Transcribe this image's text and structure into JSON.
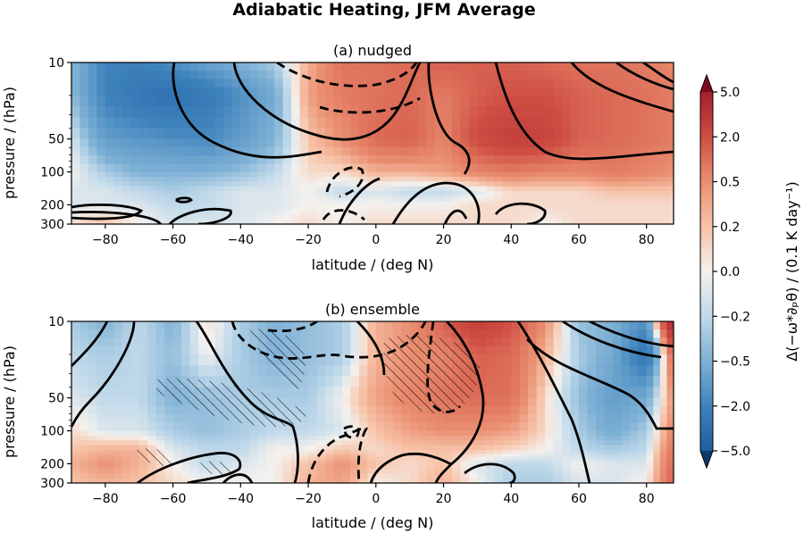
{
  "chart_data": {
    "type": "heatmap",
    "title": "Adiabatic Heating, JFM Average",
    "panels": [
      {
        "id": "a",
        "subtitle": "(a) nudged",
        "xlabel": "latitude / (deg N)",
        "ylabel": "pressure / (hPa)",
        "xlim": [
          -90,
          88
        ],
        "ylim": [
          300,
          10
        ],
        "yscale": "log",
        "x_ticks": [
          -80,
          -60,
          -40,
          -20,
          0,
          20,
          40,
          60,
          80
        ],
        "x_tick_labels": [
          "−80",
          "−60",
          "−40",
          "−20",
          "0",
          "20",
          "40",
          "60",
          "80"
        ],
        "y_ticks": [
          10,
          50,
          100,
          200,
          300
        ],
        "y_tick_labels": [
          "10",
          "50",
          "100",
          "200",
          "300"
        ],
        "field": {
          "lat": [
            -90,
            -80,
            -70,
            -60,
            -50,
            -40,
            -30,
            -20,
            -10,
            0,
            10,
            20,
            30,
            40,
            50,
            60,
            70,
            80,
            88
          ],
          "pressure": [
            10,
            20,
            50,
            100,
            150,
            200,
            300
          ],
          "values": [
            [
              -0.4,
              -1.2,
              -1.3,
              -1.0,
              -0.7,
              -0.5,
              -0.3,
              0.3,
              0.8,
              0.8,
              0.9,
              1.0,
              1.0,
              1.0,
              0.9,
              0.8,
              0.8,
              0.7,
              0.6
            ],
            [
              -0.4,
              -1.2,
              -1.6,
              -1.8,
              -1.5,
              -1.0,
              -0.6,
              0.4,
              0.7,
              0.8,
              0.9,
              0.7,
              1.0,
              1.2,
              1.2,
              1.0,
              0.9,
              0.8,
              0.7
            ],
            [
              -0.1,
              -0.8,
              -0.9,
              -1.0,
              -1.1,
              -0.8,
              -0.5,
              0.2,
              0.5,
              0.9,
              1.0,
              0.6,
              1.3,
              1.6,
              1.5,
              1.0,
              0.9,
              0.8,
              0.7
            ],
            [
              0.0,
              -0.3,
              -0.5,
              -0.5,
              -0.5,
              -0.4,
              -0.2,
              0.1,
              0.1,
              0.3,
              0.3,
              0.4,
              0.6,
              0.7,
              0.6,
              0.6,
              0.7,
              0.6,
              0.5
            ],
            [
              -0.1,
              -0.1,
              -0.2,
              -0.3,
              -0.2,
              -0.1,
              -0.1,
              0.0,
              -0.2,
              -0.1,
              -0.2,
              -0.2,
              -0.1,
              0.1,
              0.1,
              0.1,
              0.2,
              0.2,
              0.2
            ],
            [
              -0.1,
              -0.1,
              -0.1,
              -0.2,
              -0.2,
              -0.1,
              -0.1,
              0.0,
              0.0,
              0.0,
              0.0,
              0.0,
              0.1,
              0.1,
              0.1,
              0.1,
              0.1,
              0.1,
              0.1
            ],
            [
              0.1,
              0.2,
              0.0,
              -0.1,
              -0.1,
              -0.1,
              0.0,
              0.1,
              0.0,
              0.1,
              0.1,
              0.1,
              0.1,
              0.1,
              0.0,
              0.1,
              0.1,
              0.1,
              0.1
            ]
          ]
        }
      },
      {
        "id": "b",
        "subtitle": "(b) ensemble",
        "xlabel": "latitude / (deg N)",
        "ylabel": "pressure / (hPa)",
        "xlim": [
          -90,
          88
        ],
        "ylim": [
          300,
          10
        ],
        "yscale": "log",
        "x_ticks": [
          -80,
          -60,
          -40,
          -20,
          0,
          20,
          40,
          60,
          80
        ],
        "x_tick_labels": [
          "−80",
          "−60",
          "−40",
          "−20",
          "0",
          "20",
          "40",
          "60",
          "80"
        ],
        "y_ticks": [
          10,
          50,
          100,
          200,
          300
        ],
        "y_tick_labels": [
          "10",
          "50",
          "100",
          "200",
          "300"
        ],
        "field": {
          "lat": [
            -90,
            -80,
            -70,
            -60,
            -50,
            -40,
            -30,
            -20,
            -10,
            0,
            10,
            20,
            30,
            40,
            50,
            60,
            70,
            80,
            88
          ],
          "pressure": [
            10,
            20,
            50,
            100,
            150,
            200,
            300
          ],
          "values": [
            [
              -0.3,
              -0.5,
              -0.2,
              -0.5,
              0.1,
              -0.3,
              -0.5,
              -0.4,
              -0.3,
              0.3,
              0.5,
              1.0,
              1.6,
              1.2,
              0.5,
              -0.4,
              -0.5,
              -1.0,
              2.5
            ],
            [
              -0.2,
              -0.3,
              -0.2,
              -0.4,
              0.0,
              -0.3,
              -0.5,
              -0.4,
              -0.3,
              0.3,
              0.5,
              0.6,
              1.0,
              0.9,
              0.3,
              -0.3,
              -0.6,
              -1.6,
              1.0
            ],
            [
              -0.1,
              -0.2,
              -0.2,
              -0.5,
              -0.4,
              -0.3,
              -0.3,
              -0.3,
              0.0,
              0.4,
              0.6,
              0.8,
              0.9,
              0.8,
              0.1,
              -0.4,
              -0.8,
              -0.6,
              0.5
            ],
            [
              0.1,
              -0.1,
              -0.1,
              -0.3,
              -0.4,
              -0.3,
              -0.2,
              -0.2,
              -0.1,
              0.2,
              0.4,
              0.5,
              0.5,
              0.4,
              0.1,
              -0.3,
              -0.6,
              -0.3,
              0.6
            ],
            [
              0.2,
              0.3,
              0.3,
              -0.1,
              -0.2,
              -0.2,
              0.0,
              0.0,
              0.2,
              0.1,
              0.2,
              0.2,
              0.2,
              0.1,
              0.0,
              -0.2,
              -0.3,
              -0.2,
              0.8
            ],
            [
              0.3,
              0.5,
              0.3,
              0.0,
              -0.2,
              -0.1,
              0.0,
              0.2,
              0.5,
              0.2,
              0.1,
              0.2,
              -0.1,
              -0.2,
              -0.2,
              0.0,
              -0.1,
              -0.1,
              0.9
            ],
            [
              0.2,
              0.3,
              0.2,
              0.1,
              0.0,
              0.0,
              0.0,
              0.3,
              0.4,
              0.0,
              0.1,
              0.3,
              0.0,
              -0.3,
              -0.3,
              -0.1,
              -0.1,
              0.0,
              1.0
            ]
          ]
        }
      }
    ],
    "colorbar": {
      "label": "Δ(−ω*∂ₚθ) / (0.1 K day⁻¹)",
      "levels": [
        -5.0,
        -2.0,
        -0.5,
        -0.2,
        0.0,
        0.2,
        0.5,
        2.0,
        5.0
      ],
      "tick_labels": [
        "5.0",
        "2.0",
        "0.5",
        "0.2",
        "0.0",
        "−0.2",
        "−0.5",
        "−2.0",
        "−5.0"
      ],
      "colormap": "RdBu_r",
      "extend": "both"
    },
    "overlays": "black contour lines (solid and dashed); panel (b) has diagonal hatching"
  }
}
